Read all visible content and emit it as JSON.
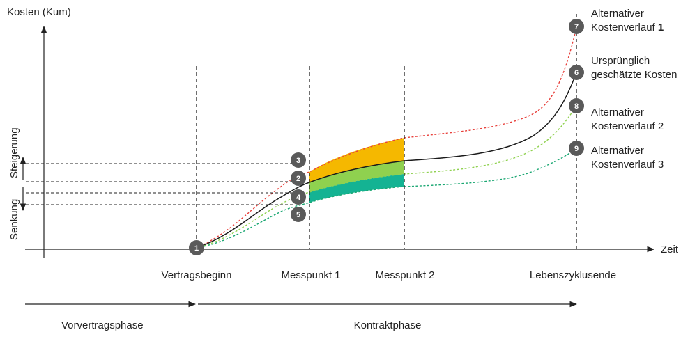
{
  "axes": {
    "y_label": "Kosten (Kum)",
    "x_label": "Zeit",
    "increase_label": "Steigerung",
    "decrease_label": "Senkung"
  },
  "milestones": [
    "Vertragsbeginn",
    "Messpunkt 1",
    "Messpunkt 2",
    "Lebenszyklusende"
  ],
  "phases": [
    "Vorvertragsphase",
    "Kontraktphase"
  ],
  "curves": [
    {
      "id": "7",
      "label_lines": [
        "Alternativer",
        "Kostenverlauf "
      ],
      "label_bold": "1",
      "color": "#e8413c",
      "style": "dashed"
    },
    {
      "id": "6",
      "label_lines": [
        "Ursprünglich",
        "geschätzte Kosten"
      ],
      "label_bold": "",
      "color": "#1a1a1a",
      "style": "solid"
    },
    {
      "id": "8",
      "label_lines": [
        "Alternativer",
        "Kostenverlauf 2"
      ],
      "label_bold": "",
      "color": "#8fd14f",
      "style": "dashed"
    },
    {
      "id": "9",
      "label_lines": [
        "Alternativer",
        "Kostenverlauf 3"
      ],
      "label_bold": "",
      "color": "#1aa772",
      "style": "dashed"
    }
  ],
  "markers": [
    "1",
    "2",
    "3",
    "4",
    "5"
  ],
  "band_colors": {
    "orange": "#f5b800",
    "green": "#8fd14f",
    "teal": "#14b393"
  },
  "marker_color": "#5a5a5a"
}
